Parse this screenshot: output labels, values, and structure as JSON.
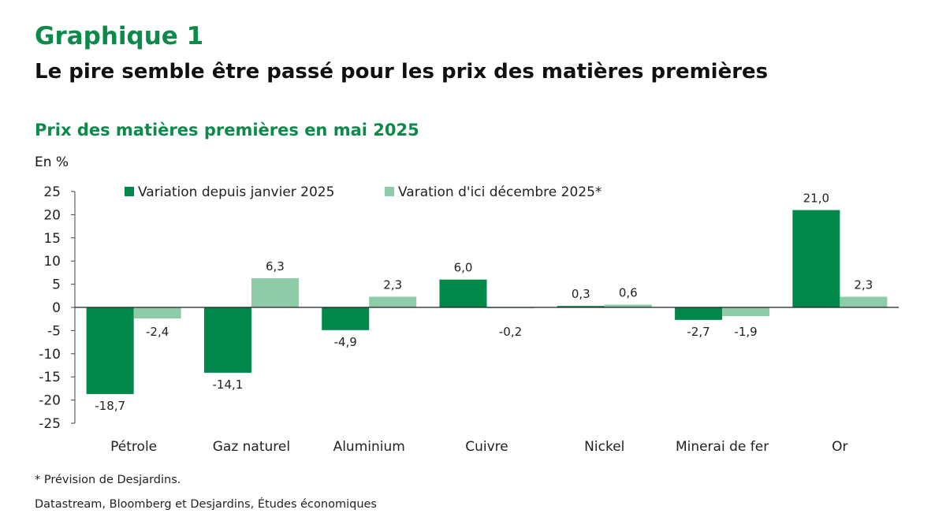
{
  "header": {
    "label": "Graphique 1",
    "title": "Le pire semble être passé pour les prix des matières premières"
  },
  "chart_data": {
    "type": "bar",
    "title": "Prix des matières premières en mai 2025",
    "ylabel": "En %",
    "xlabel": "",
    "ylim": [
      -25,
      25
    ],
    "yticks": [
      25,
      20,
      15,
      10,
      5,
      0,
      -5,
      -10,
      -15,
      -20,
      -25
    ],
    "categories": [
      "Pétrole",
      "Gaz naturel",
      "Aluminium",
      "Cuivre",
      "Nickel",
      "Minerai de fer",
      "Or"
    ],
    "series": [
      {
        "name": "Variation depuis janvier 2025",
        "color": "#00874a",
        "values": [
          -18.7,
          -14.1,
          -4.9,
          6.0,
          0.3,
          -2.7,
          21.0
        ],
        "labels": [
          "-18,7",
          "-14,1",
          "-4,9",
          "6,0",
          "0,3",
          "-2,7",
          "21,0"
        ]
      },
      {
        "name": "Varation d'ici décembre 2025*",
        "color": "#8ecba8",
        "values": [
          -2.4,
          6.3,
          2.3,
          -0.2,
          0.6,
          -1.9,
          2.3
        ],
        "labels": [
          "-2,4",
          "6,3",
          "2,3",
          "-0,2",
          "0,6",
          "-1,9",
          "2,3"
        ]
      }
    ],
    "legend": "top",
    "grid": false
  },
  "footer": {
    "note": "* Prévision de Desjardins.",
    "source": "Datastream, Bloomberg et Desjardins, Études économiques"
  }
}
